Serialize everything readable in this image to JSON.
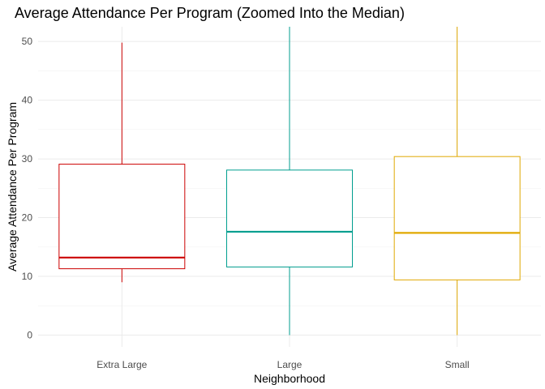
{
  "chart_data": {
    "type": "box",
    "title": "Average Attendance Per Program (Zoomed Into the Median)",
    "xlabel": "Neighborhood",
    "ylabel": "Average Attendance Per Program",
    "ylim": [
      -2,
      52.5
    ],
    "yticks": [
      0,
      10,
      20,
      30,
      40,
      50
    ],
    "grid": true,
    "legend": "none",
    "categories": [
      "Extra Large",
      "Large",
      "Small"
    ],
    "boxes": [
      {
        "category": "Extra Large",
        "color": "#cc0000",
        "whisker_low": 9,
        "q1": 11.3,
        "median": 13.2,
        "q3": 29.1,
        "whisker_high": 49.8
      },
      {
        "category": "Large",
        "color": "#009e8f",
        "whisker_low": 0,
        "q1": 11.6,
        "median": 17.6,
        "q3": 28.1,
        "whisker_high": 52.5
      },
      {
        "category": "Small",
        "color": "#e0a800",
        "whisker_low": 0,
        "q1": 9.4,
        "median": 17.4,
        "q3": 30.4,
        "whisker_high": 52.5
      }
    ]
  }
}
